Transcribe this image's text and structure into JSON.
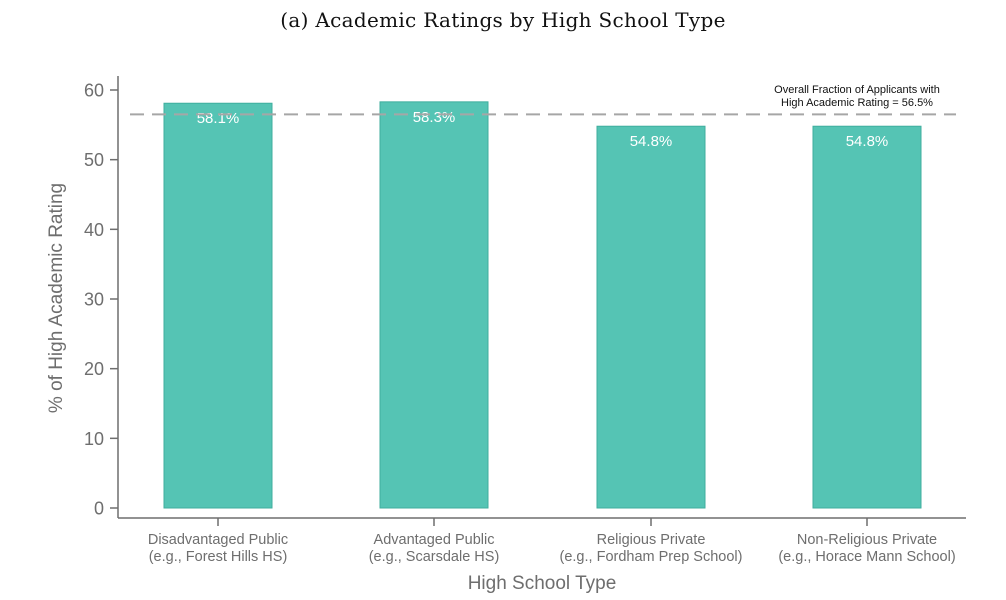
{
  "page_title": "(a)  Academic Ratings by High School Type",
  "chart_data": {
    "type": "bar",
    "title": "(a)  Academic Ratings by High School Type",
    "xlabel": "High School Type",
    "ylabel": "% of High Academic Rating",
    "ylim": [
      0,
      60
    ],
    "yticks": [
      0,
      10,
      20,
      30,
      40,
      50,
      60
    ],
    "categories": [
      [
        "Disadvantaged Public",
        "(e.g., Forest Hills HS)"
      ],
      [
        "Advantaged Public",
        "(e.g., Scarsdale HS)"
      ],
      [
        "Religious Private",
        "(e.g., Fordham Prep School)"
      ],
      [
        "Non-Religious Private",
        "(e.g., Horace Mann School)"
      ]
    ],
    "values": [
      58.1,
      58.3,
      54.8,
      54.8
    ],
    "value_labels": [
      "58.1%",
      "58.3%",
      "54.8%",
      "54.8%"
    ],
    "reference_line": {
      "value": 56.5,
      "style": "dashed",
      "label": [
        "Overall Fraction of Applicants with",
        "High Academic Rating = 56.5%"
      ]
    },
    "colors": {
      "bar_fill": "#55c4b4",
      "bar_stroke": "#3fae9e",
      "axis": "#6e6e6e",
      "reference": "#a6a6a6"
    }
  }
}
